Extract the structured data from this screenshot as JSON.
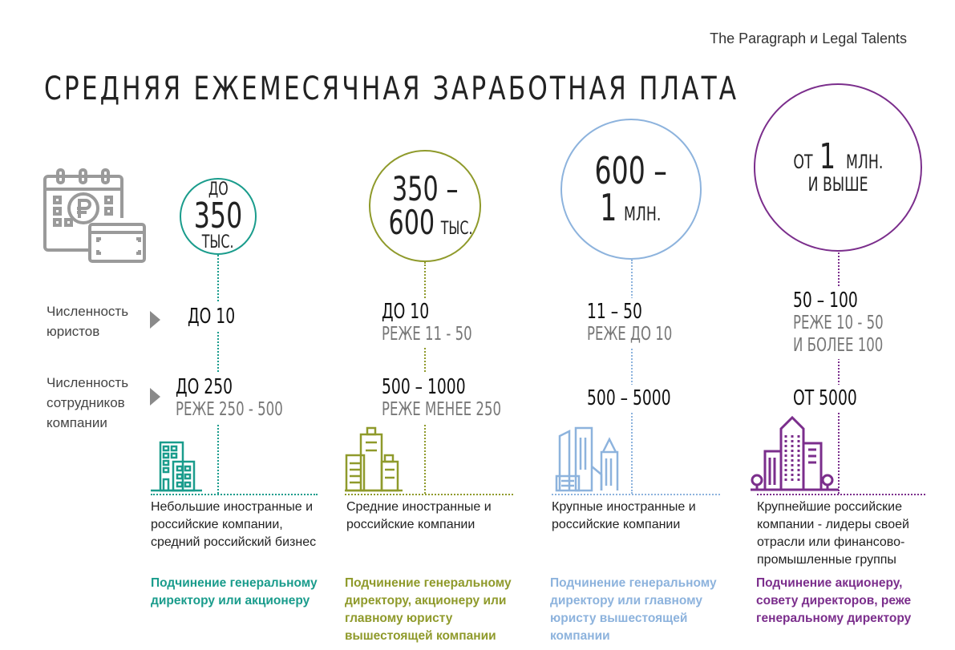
{
  "source": "The Paragraph и Legal Talents",
  "title": "СРЕДНЯЯ ЕЖЕМЕСЯЧНАЯ ЗАРАБОТНАЯ ПЛАТА",
  "icons": {
    "header": "calendar-ruble-card-icon"
  },
  "row_labels": {
    "lawyers": "Численность юристов",
    "employees": "Численность сотрудников компании"
  },
  "colors": {
    "teal": "#1a9c8c",
    "olive": "#8f9a2b",
    "blue": "#8db3dd",
    "purple": "#7b2e8c"
  },
  "columns": [
    {
      "salary": {
        "line1": "ДО",
        "line2": "350",
        "line3": "ТЫС."
      },
      "lawyers": {
        "main": "ДО 10"
      },
      "employees": {
        "main": "ДО 250",
        "sub": "РЕЖЕ 250 - 500"
      },
      "description": "Небольшие иностранные и российские компании, средний российский бизнес",
      "subordination": "Подчинение генеральному директору или акционеру"
    },
    {
      "salary": {
        "line1": "350 –",
        "line2": "600",
        "line3": "ТЫС."
      },
      "lawyers": {
        "main": "ДО 10",
        "sub": "РЕЖЕ 11 - 50"
      },
      "employees": {
        "main": "500 – 1000",
        "sub": "РЕЖЕ МЕНЕЕ 250"
      },
      "description": "Средние иностранные и российские компании",
      "subordination": "Подчинение генеральному директору, акционеру или главному юристу вышестоящей компании"
    },
    {
      "salary": {
        "line1": "600 –",
        "line2": "1",
        "line3": "МЛН."
      },
      "lawyers": {
        "main": "11 – 50",
        "sub": "РЕЖЕ ДО 10"
      },
      "employees": {
        "main": "500 – 5000"
      },
      "description": "Крупные  иностранные и российские компании",
      "subordination": "Подчинение генеральному директору или главному юристу вышестоящей компании"
    },
    {
      "salary": {
        "line1": "ОТ",
        "line2": "1",
        "line3": "МЛН.",
        "line4": "И ВЫШЕ"
      },
      "lawyers": {
        "main": "50 – 100",
        "sub": "РЕЖЕ 10 - 50",
        "sub2": "И БОЛЕЕ 100"
      },
      "employees": {
        "main": "ОТ 5000"
      },
      "description": "Крупнейшие российские компании - лидеры своей отрасли или финансово-промышленные группы",
      "subordination": "Подчинение акционеру, совету директоров, реже генеральному директору"
    }
  ]
}
